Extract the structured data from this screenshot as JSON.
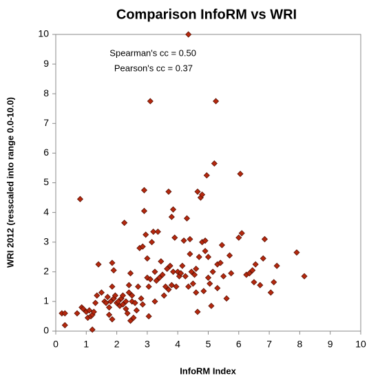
{
  "chart_data": {
    "type": "scatter",
    "title": "Comparison InfoRM vs WRI",
    "x_label": "InfoRM Index",
    "y_label": "WRI 2012 (resscaled into range 0.0-10.0)",
    "annotations": [
      "Spearman's cc =  0.50",
      "Pearson's cc = 0.37"
    ],
    "color": "#b5280e",
    "edge_color": "#5a1205",
    "grid": false,
    "xlim": [
      0,
      10
    ],
    "ylim": [
      0,
      10
    ],
    "xticks": [
      0,
      1,
      2,
      3,
      4,
      5,
      6,
      7,
      8,
      9,
      10
    ],
    "yticks": [
      0,
      1,
      2,
      3,
      4,
      5,
      6,
      7,
      8,
      9,
      10
    ],
    "x": [
      0.2,
      0.3,
      0.3,
      0.7,
      0.8,
      0.85,
      0.9,
      1.0,
      1.05,
      1.1,
      1.15,
      1.2,
      1.2,
      1.25,
      1.3,
      1.35,
      1.4,
      1.5,
      1.6,
      1.65,
      1.7,
      1.75,
      1.75,
      1.8,
      1.85,
      1.85,
      1.9,
      1.85,
      1.9,
      1.95,
      2.0,
      2.05,
      2.1,
      2.15,
      2.2,
      2.2,
      2.25,
      2.3,
      2.3,
      2.35,
      2.4,
      2.4,
      2.45,
      2.45,
      2.5,
      2.5,
      2.55,
      2.6,
      2.65,
      2.7,
      2.75,
      2.8,
      2.85,
      2.85,
      2.9,
      2.9,
      2.95,
      3.0,
      3.0,
      3.05,
      3.05,
      3.1,
      3.1,
      3.15,
      3.2,
      3.25,
      3.25,
      3.3,
      3.35,
      3.4,
      3.45,
      3.5,
      3.55,
      3.6,
      3.65,
      3.7,
      3.7,
      3.75,
      3.8,
      3.8,
      3.85,
      3.85,
      3.9,
      3.95,
      4.0,
      4.05,
      4.1,
      4.15,
      4.2,
      4.25,
      4.3,
      4.35,
      4.4,
      4.4,
      4.35,
      4.45,
      4.5,
      4.55,
      4.6,
      4.6,
      4.65,
      4.65,
      4.7,
      4.75,
      4.8,
      4.8,
      4.85,
      4.9,
      4.9,
      4.95,
      5.0,
      5.0,
      5.05,
      5.1,
      5.15,
      5.2,
      5.25,
      5.3,
      5.3,
      5.4,
      5.45,
      5.5,
      5.6,
      5.7,
      5.75,
      6.0,
      6.05,
      6.1,
      6.25,
      6.35,
      6.45,
      6.55,
      6.5,
      6.7,
      6.8,
      6.85,
      7.05,
      7.15,
      7.25,
      7.9,
      8.15
    ],
    "values": [
      0.6,
      0.6,
      0.2,
      0.6,
      4.45,
      0.8,
      0.75,
      0.65,
      0.45,
      0.7,
      0.5,
      0.55,
      0.05,
      0.65,
      0.95,
      1.2,
      2.25,
      1.3,
      1.0,
      0.95,
      1.15,
      0.8,
      0.55,
      1.0,
      1.5,
      2.3,
      1.1,
      0.4,
      2.05,
      1.2,
      0.95,
      1.0,
      0.85,
      1.1,
      1.2,
      0.9,
      3.65,
      0.75,
      1.0,
      0.6,
      1.3,
      1.55,
      1.95,
      0.35,
      1.2,
      1.0,
      0.45,
      0.95,
      0.7,
      1.5,
      2.8,
      1.1,
      0.9,
      2.85,
      4.75,
      4.05,
      3.25,
      1.8,
      2.45,
      1.5,
      0.5,
      7.75,
      1.75,
      3.0,
      3.35,
      2.0,
      1.0,
      1.7,
      3.35,
      1.8,
      2.35,
      1.9,
      1.2,
      1.5,
      2.1,
      4.7,
      1.4,
      2.2,
      3.85,
      1.55,
      4.1,
      2.0,
      3.15,
      1.5,
      2.0,
      1.85,
      1.95,
      2.2,
      3.05,
      1.85,
      3.8,
      1.5,
      2.6,
      3.1,
      10.0,
      2.0,
      1.6,
      1.9,
      2.1,
      1.3,
      4.7,
      0.65,
      2.5,
      4.5,
      4.6,
      3.0,
      1.35,
      2.7,
      3.05,
      5.25,
      1.8,
      2.5,
      1.6,
      0.85,
      2.0,
      5.65,
      7.75,
      2.25,
      1.45,
      2.3,
      2.9,
      1.85,
      1.1,
      2.55,
      1.95,
      3.15,
      5.3,
      3.3,
      1.9,
      1.95,
      2.05,
      2.25,
      1.65,
      1.55,
      2.45,
      3.1,
      1.3,
      1.65,
      2.2,
      2.65,
      1.85
    ]
  }
}
